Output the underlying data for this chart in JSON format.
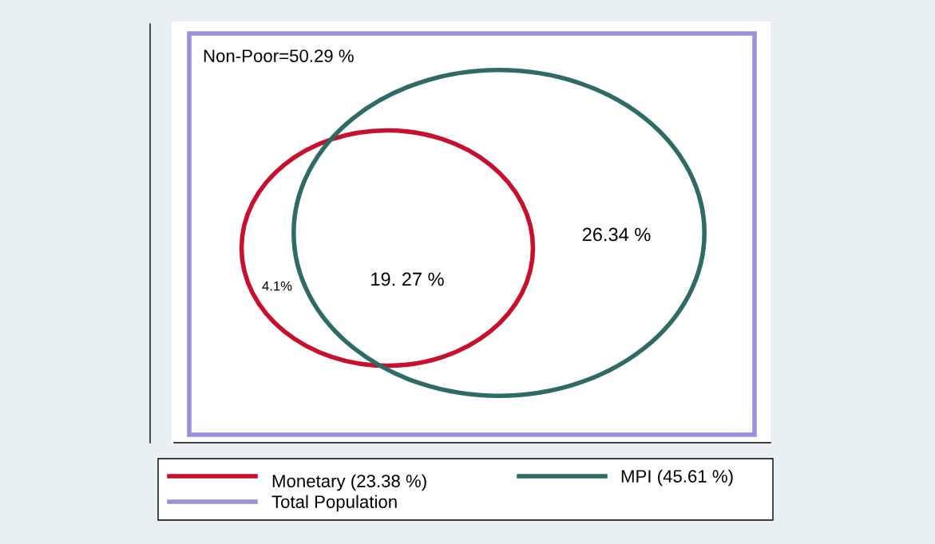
{
  "chart_data": {
    "type": "other",
    "categories": [
      null,
      null,
      null,
      null
    ],
    "values": [
      50.29,
      26.34,
      19.27,
      4.1
    ],
    "value_labels": [
      "Non-Poor=50.29 %",
      "26.34 %",
      "19. 27 %",
      "4.1%"
    ],
    "annotations": [
      "Monetary (23.38 %)",
      "MPI (45.61 %)",
      "Total Population"
    ]
  }
}
